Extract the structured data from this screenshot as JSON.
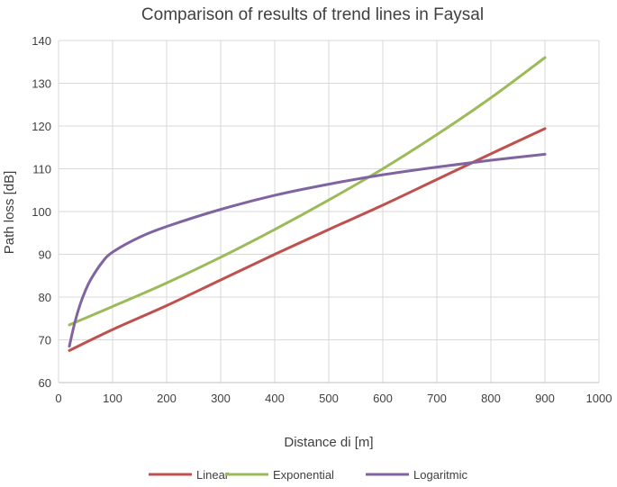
{
  "chart_data": {
    "type": "line",
    "title": "Comparison of results of trend lines in Faysal",
    "xlabel": "Distance di [m]",
    "ylabel": "Path loss [dB]",
    "xlim": [
      0,
      1000
    ],
    "ylim": [
      60,
      140
    ],
    "xticks": [
      0,
      100,
      200,
      300,
      400,
      500,
      600,
      700,
      800,
      900,
      1000
    ],
    "yticks": [
      60,
      70,
      80,
      90,
      100,
      110,
      120,
      130,
      140
    ],
    "grid": true,
    "legend_position": "bottom",
    "series": [
      {
        "name": "Linear",
        "color": "#c0504d",
        "x": [
          20,
          100,
          200,
          300,
          400,
          500,
          600,
          700,
          800,
          900
        ],
        "y": [
          67.5,
          72.4,
          78.0,
          84.0,
          90.0,
          95.8,
          101.5,
          107.5,
          113.5,
          119.4
        ]
      },
      {
        "name": "Exponential",
        "color": "#9bbb59",
        "x": [
          20,
          100,
          200,
          300,
          400,
          500,
          600,
          700,
          800,
          900
        ],
        "y": [
          73.5,
          77.8,
          83.3,
          89.3,
          95.8,
          102.7,
          110.0,
          118.0,
          126.6,
          136.0
        ]
      },
      {
        "name": "Logaritmic",
        "color": "#8064a2",
        "x": [
          20,
          30,
          40,
          50,
          60,
          80,
          100,
          150,
          200,
          300,
          400,
          500,
          600,
          700,
          800,
          900
        ],
        "y": [
          68.5,
          74.0,
          78.3,
          81.6,
          84.2,
          88.0,
          90.5,
          94.0,
          96.5,
          100.5,
          103.8,
          106.4,
          108.6,
          110.4,
          112.0,
          113.4
        ]
      }
    ]
  }
}
